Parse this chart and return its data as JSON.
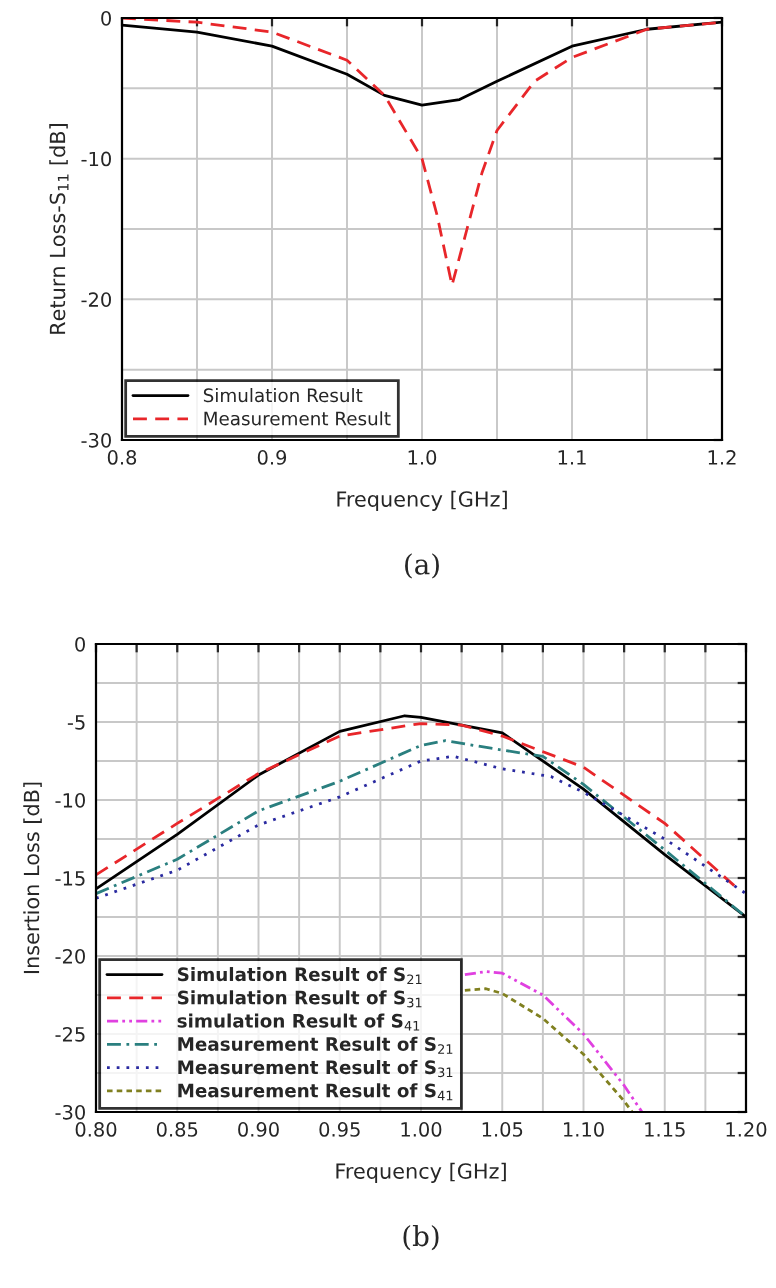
{
  "chart_data": [
    {
      "type": "line",
      "xlabel": "Frequency [GHz]",
      "ylabel": "Return Loss-S$_{11}$ [dB]",
      "annotations": [
        "(a)"
      ],
      "xlim": [
        0.8,
        1.2
      ],
      "ylim": [
        -30,
        0
      ],
      "xticks": [
        0.8,
        {
          "value": 0.85,
          "label": null
        },
        0.9,
        {
          "value": 0.95,
          "label": null
        },
        {
          "value": 1.0,
          "label": "1.0"
        },
        {
          "value": 1.05,
          "label": null
        },
        1.1,
        {
          "value": 1.15,
          "label": null
        },
        1.2
      ],
      "yticks": [
        -30,
        {
          "value": -25,
          "label": null
        },
        -20,
        {
          "value": -15,
          "label": null
        },
        -10,
        {
          "value": -5,
          "label": null
        },
        0
      ],
      "grid": true,
      "legend": "bottom left",
      "series": [
        {
          "name": "Simulation Result",
          "color": "#000000",
          "line_style": "solid",
          "x": [
            0.8,
            0.85,
            0.9,
            0.95,
            0.975,
            1.0,
            1.025,
            1.05,
            1.1,
            1.15,
            1.2
          ],
          "values": [
            -0.5,
            -1,
            -2,
            -4,
            -5.5,
            -6.2,
            -5.8,
            -4.5,
            -2,
            -0.8,
            -0.3
          ]
        },
        {
          "name": "Measurement Result",
          "color": "#e8262a",
          "line_style": "dashed",
          "x": [
            0.8,
            0.85,
            0.9,
            0.95,
            0.975,
            1.0,
            1.01,
            1.02,
            1.03,
            1.04,
            1.05,
            1.075,
            1.1,
            1.15,
            1.2
          ],
          "values": [
            0,
            -0.3,
            -1,
            -3,
            -5.5,
            -10,
            -14,
            -19,
            -15,
            -11,
            -8,
            -4.5,
            -2.8,
            -0.8,
            -0.3
          ]
        }
      ]
    },
    {
      "type": "line",
      "xlabel": "Frequency [GHz]",
      "ylabel": "Insertion Loss [dB]",
      "annotations": [
        "(b)"
      ],
      "xlim": [
        0.8,
        1.2
      ],
      "ylim": [
        -30,
        0
      ],
      "xticks": [
        {
          "value": 0.8,
          "label": "0.80"
        },
        {
          "value": 0.825,
          "label": null
        },
        0.85,
        {
          "value": 0.875,
          "label": null
        },
        {
          "value": 0.9,
          "label": "0.90"
        },
        {
          "value": 0.925,
          "label": null
        },
        0.95,
        {
          "value": 0.975,
          "label": null
        },
        {
          "value": 1.0,
          "label": "1.00"
        },
        {
          "value": 1.025,
          "label": null
        },
        1.05,
        {
          "value": 1.075,
          "label": null
        },
        {
          "value": 1.1,
          "label": "1.10"
        },
        {
          "value": 1.125,
          "label": null
        },
        1.15,
        {
          "value": 1.175,
          "label": null
        },
        {
          "value": 1.2,
          "label": "1.20"
        }
      ],
      "yticks": [
        -30,
        {
          "value": -27.5,
          "label": null
        },
        -25,
        {
          "value": -22.5,
          "label": null
        },
        -20,
        {
          "value": -17.5,
          "label": null
        },
        -15,
        {
          "value": -12.5,
          "label": null
        },
        -10,
        {
          "value": -7.5,
          "label": null
        },
        -5,
        {
          "value": -2.5,
          "label": null
        },
        0
      ],
      "grid": true,
      "legend": "bottom left",
      "series": [
        {
          "name": "Simulation Result of S$_{21}$",
          "color": "#000000",
          "line_style": "solid",
          "x": [
            0.8,
            0.85,
            0.9,
            0.95,
            0.99,
            1.0,
            1.05,
            1.1,
            1.15,
            1.2
          ],
          "values": [
            -15.7,
            -12.2,
            -8.4,
            -5.6,
            -4.6,
            -4.7,
            -5.7,
            -9.3,
            -13.5,
            -17.5
          ]
        },
        {
          "name": "Simulation Result of S$_{31}$",
          "color": "#e8262a",
          "line_style": "dashed",
          "x": [
            0.8,
            0.85,
            0.9,
            0.95,
            1.0,
            1.025,
            1.05,
            1.1,
            1.15,
            1.195
          ],
          "values": [
            -14.8,
            -11.5,
            -8.3,
            -5.9,
            -5.1,
            -5.2,
            -5.9,
            -7.9,
            -11.5,
            -15.7
          ]
        },
        {
          "name": "simulation Result of S$_{41}$",
          "color": "#e040e0",
          "line_style": "dashdotdot",
          "x": [
            1.027,
            1.04,
            1.05,
            1.075,
            1.1,
            1.125,
            1.136
          ],
          "values": [
            -21.2,
            -21.0,
            -21.1,
            -22.5,
            -25,
            -28.3,
            -30
          ]
        },
        {
          "name": "Measurement Result of S$_{21}$",
          "color": "#2a7f7f",
          "line_style": "dashdot",
          "x": [
            0.8,
            0.85,
            0.9,
            0.95,
            1.0,
            1.015,
            1.05,
            1.075,
            1.1,
            1.15,
            1.2
          ],
          "values": [
            -16,
            -13.8,
            -10.7,
            -8.8,
            -6.5,
            -6.2,
            -6.8,
            -7.2,
            -9,
            -13.2,
            -17.5
          ]
        },
        {
          "name": "Measurement Result of S$_{31}$",
          "color": "#2a2aa0",
          "line_style": "dotted",
          "x": [
            0.8,
            0.85,
            0.9,
            0.95,
            1.0,
            1.02,
            1.05,
            1.08,
            1.1,
            1.15,
            1.2
          ],
          "values": [
            -16.3,
            -14.5,
            -11.6,
            -9.8,
            -7.5,
            -7.2,
            -8,
            -8.5,
            -9.5,
            -12.5,
            -16
          ]
        },
        {
          "name": "Measurement Result of S$_{41}$",
          "color": "#808020",
          "line_style": "dashed_short",
          "x": [
            1.027,
            1.04,
            1.05,
            1.075,
            1.1,
            1.125,
            1.13
          ],
          "values": [
            -22.2,
            -22.1,
            -22.4,
            -24,
            -26.3,
            -29.3,
            -30
          ]
        }
      ]
    }
  ]
}
